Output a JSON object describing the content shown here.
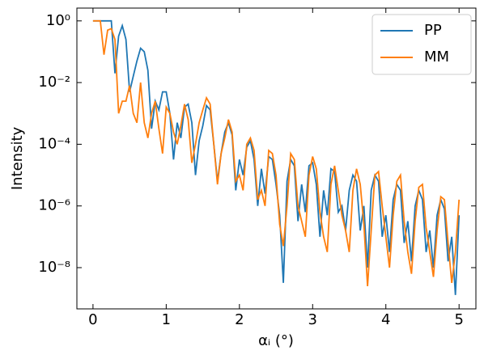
{
  "chart_data": {
    "type": "line",
    "log_y": true,
    "legend": "upper right",
    "x_label": "αᵢ (°)",
    "y_label": "Intensity",
    "xlim": [
      -0.22,
      5.23
    ],
    "xticks": [
      0,
      1,
      2,
      3,
      4,
      5
    ],
    "ylim": [
      4.6e-10,
      2.6
    ],
    "yticks": [
      {
        "value": 1,
        "label": "10⁰"
      },
      {
        "value": 0.01,
        "label": "10⁻²"
      },
      {
        "value": 0.0001,
        "label": "10⁻⁴"
      },
      {
        "value": 1e-06,
        "label": "10⁻⁶"
      },
      {
        "value": 1e-08,
        "label": "10⁻⁸"
      }
    ],
    "x": [
      0,
      0.05,
      0.1,
      0.15,
      0.2,
      0.25,
      0.3,
      0.35,
      0.4,
      0.45,
      0.5,
      0.55,
      0.6,
      0.65,
      0.7,
      0.75,
      0.8,
      0.85,
      0.9,
      0.95,
      1,
      1.05,
      1.1,
      1.15,
      1.2,
      1.25,
      1.3,
      1.35,
      1.4,
      1.45,
      1.5,
      1.55,
      1.6,
      1.65,
      1.7,
      1.75,
      1.8,
      1.85,
      1.9,
      1.95,
      2,
      2.05,
      2.1,
      2.15,
      2.2,
      2.25,
      2.3,
      2.35,
      2.4,
      2.45,
      2.5,
      2.55,
      2.6,
      2.65,
      2.7,
      2.75,
      2.8,
      2.85,
      2.9,
      2.95,
      3,
      3.05,
      3.1,
      3.15,
      3.2,
      3.25,
      3.3,
      3.35,
      3.4,
      3.45,
      3.5,
      3.55,
      3.6,
      3.65,
      3.7,
      3.75,
      3.8,
      3.85,
      3.9,
      3.95,
      4,
      4.05,
      4.1,
      4.15,
      4.2,
      4.25,
      4.3,
      4.35,
      4.4,
      4.45,
      4.5,
      4.55,
      4.6,
      4.65,
      4.7,
      4.75,
      4.8,
      4.85,
      4.9,
      4.95,
      5
    ],
    "series": [
      {
        "name": "PP",
        "color": "#1f77b4",
        "values": [
          1,
          1,
          1,
          1,
          1,
          1,
          0.02,
          0.32,
          0.7,
          0.25,
          0.005,
          0.016,
          0.05,
          0.13,
          0.1,
          0.025,
          0.00032,
          0.0025,
          0.0013,
          0.005,
          0.005,
          0.001,
          3.2e-05,
          0.0005,
          0.00016,
          0.0016,
          0.002,
          0.0005,
          1e-05,
          0.00013,
          0.0004,
          0.0018,
          0.0013,
          0.0001,
          6.3e-06,
          5e-05,
          0.00025,
          0.0005,
          0.0002,
          3.2e-06,
          3.2e-05,
          1e-05,
          8e-05,
          0.00013,
          3.2e-05,
          1e-06,
          1.6e-05,
          2.5e-06,
          4e-05,
          3.2e-05,
          5e-06,
          5e-07,
          3.2e-09,
          6.3e-06,
          3.2e-05,
          2e-05,
          3.2e-07,
          5e-06,
          6.3e-07,
          2e-05,
          2.5e-05,
          5e-06,
          1e-07,
          3.2e-06,
          5e-07,
          1.6e-05,
          1.3e-05,
          6.3e-07,
          1e-06,
          1.6e-07,
          3.2e-06,
          1e-05,
          6.3e-06,
          1.6e-07,
          1e-06,
          1e-08,
          3.2e-06,
          1e-05,
          6.3e-06,
          1e-07,
          5e-07,
          3.2e-08,
          1.6e-06,
          5e-06,
          3.2e-06,
          6.3e-08,
          3.2e-07,
          1.6e-08,
          1e-06,
          3.2e-06,
          1.6e-06,
          3.2e-08,
          1.6e-07,
          1e-08,
          5e-07,
          1.6e-06,
          8e-07,
          1.6e-08,
          1e-07,
          1.3e-09,
          5e-07
        ]
      },
      {
        "name": "MM",
        "color": "#ff7f0e",
        "values": [
          1,
          1,
          1,
          0.08,
          0.5,
          0.56,
          0.25,
          0.001,
          0.0025,
          0.0025,
          0.008,
          0.001,
          0.0005,
          0.01,
          0.0005,
          0.00016,
          0.001,
          0.0025,
          0.00032,
          5e-05,
          0.0016,
          0.001,
          0.00025,
          0.0001,
          0.0004,
          0.002,
          0.00063,
          2.5e-05,
          0.0001,
          0.0005,
          0.0013,
          0.0032,
          0.002,
          0.0001,
          5e-06,
          5e-05,
          0.00016,
          0.00063,
          0.00025,
          6.3e-06,
          1e-05,
          3.2e-06,
          0.0001,
          0.00016,
          6.3e-05,
          1.6e-06,
          3.2e-06,
          1e-06,
          6.3e-05,
          5e-05,
          1e-05,
          2.5e-07,
          5e-08,
          1e-06,
          5e-05,
          3.2e-05,
          1e-06,
          3.2e-07,
          1e-07,
          1e-05,
          4e-05,
          1.6e-05,
          6.3e-07,
          1e-07,
          3.2e-08,
          5e-06,
          2e-05,
          3.2e-06,
          5e-07,
          1.6e-07,
          3.2e-08,
          3.2e-06,
          1.6e-05,
          5e-06,
          2.5e-07,
          2.5e-09,
          1.6e-07,
          1e-05,
          1.3e-05,
          1e-06,
          1e-07,
          1e-08,
          5e-07,
          6.3e-06,
          1e-05,
          3.2e-07,
          3.2e-08,
          6.3e-09,
          3.2e-07,
          4e-06,
          5e-06,
          2e-07,
          3.2e-08,
          5e-09,
          1.6e-07,
          2e-06,
          1.6e-06,
          6.3e-08,
          3.2e-09,
          3.2e-08,
          1.6e-06
        ]
      }
    ]
  }
}
